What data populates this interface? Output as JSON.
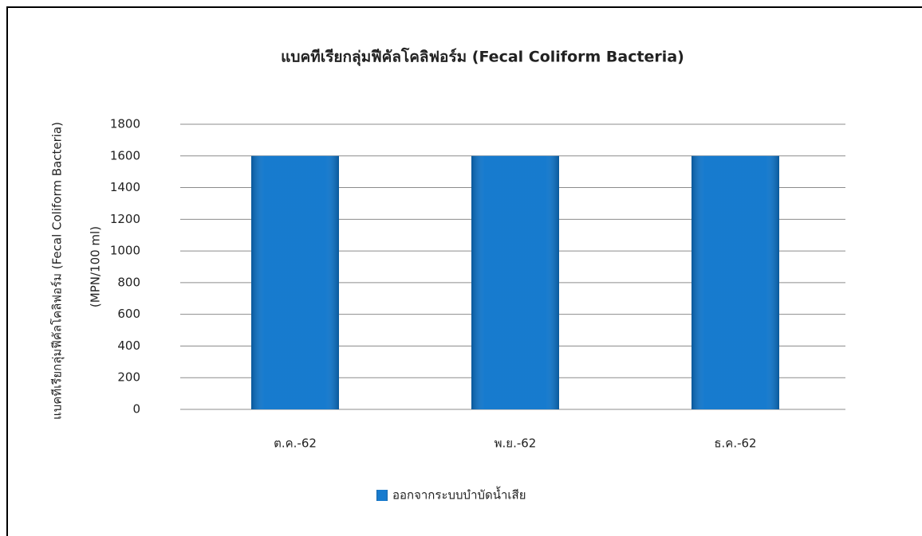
{
  "chart_data": {
    "type": "bar",
    "title": "แบคทีเรียกลุ่มฟีคัลโคลิฟอร์ม (Fecal Coliform Bacteria)",
    "ylabel": [
      "แบคทีเรียกลุ่มฟีคัลโคลิฟอร์ม (Fecal Coliform Bacteria)",
      "(MPN/100 ml)"
    ],
    "categories": [
      "ต.ค.-62",
      "พ.ย.-62",
      "ธ.ค.-62"
    ],
    "series": [
      {
        "name": "ออกจากระบบบำบัดน้ำเสีย",
        "color": "#0b74cc",
        "values": [
          1600,
          1600,
          1600
        ]
      }
    ],
    "ylim": [
      0,
      1800
    ],
    "yticks": [
      0,
      200,
      400,
      600,
      800,
      1000,
      1200,
      1400,
      1600,
      1800
    ],
    "grid": true,
    "legend": "bottom"
  }
}
